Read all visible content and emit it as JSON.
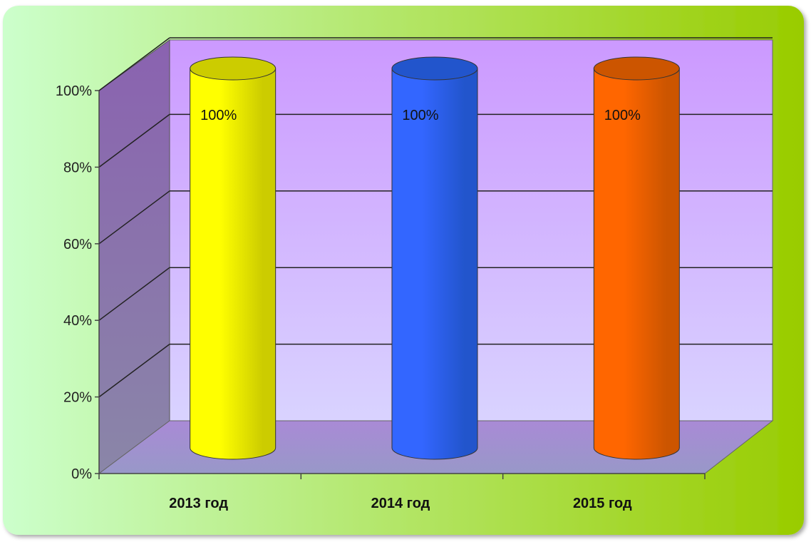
{
  "chart_data": {
    "type": "bar",
    "categories": [
      "2013 год",
      "2014 год",
      "2015 год"
    ],
    "values": [
      100,
      100,
      100
    ],
    "data_labels": [
      "100%",
      "100%",
      "100%"
    ],
    "title": "",
    "xlabel": "",
    "ylabel": "",
    "ylim": [
      0,
      100
    ],
    "yticks": [
      0,
      20,
      40,
      60,
      80,
      100
    ],
    "ytick_labels": [
      "0%",
      "20%",
      "40%",
      "60%",
      "80%",
      "100%"
    ],
    "grid": true,
    "legend": "none",
    "bar_shape": "cylinder",
    "colors": {
      "bars": [
        "#FFFF00",
        "#3366FF",
        "#FF6600"
      ],
      "bar_tops": [
        "#CCCC00",
        "#2255CC",
        "#CC5500"
      ],
      "background_left": "#CCFFCC",
      "background_right": "#99CC00",
      "wall": "#CC99FF",
      "floor": "#9999CC"
    }
  }
}
